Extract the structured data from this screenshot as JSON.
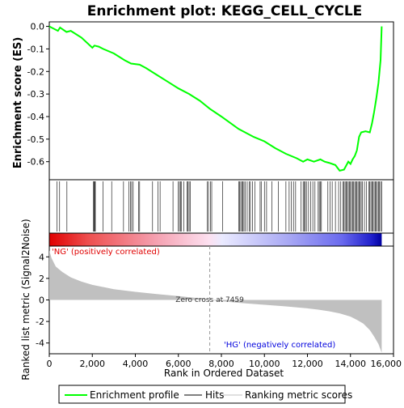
{
  "chart_data": {
    "type": "line",
    "title": "Enrichment plot: KEGG_CELL_CYCLE",
    "top_panel": {
      "ylabel": "Enrichment score (ES)",
      "ylim": [
        -0.68,
        0.02
      ],
      "yticks": [
        0.0,
        -0.1,
        -0.2,
        -0.3,
        -0.4,
        -0.5,
        -0.6
      ],
      "ytick_labels": [
        "0.0",
        "-0.1",
        "-0.2",
        "-0.3",
        "-0.4",
        "-0.5",
        "-0.6"
      ],
      "series": [
        {
          "name": "Enrichment profile",
          "color": "#00ff00",
          "x": [
            0,
            400,
            500,
            800,
            1000,
            1500,
            2000,
            2100,
            2300,
            2500,
            3000,
            3500,
            3800,
            4200,
            4500,
            5000,
            5500,
            6000,
            6500,
            7000,
            7459,
            8000,
            8800,
            9500,
            10000,
            10500,
            11000,
            11500,
            11800,
            12000,
            12300,
            12600,
            12800,
            13000,
            13300,
            13500,
            13700,
            13900,
            14000,
            14100,
            14200,
            14300,
            14400,
            14500,
            14700,
            14900,
            15000,
            15100,
            15200,
            15300,
            15400,
            15450
          ],
          "y": [
            0.0,
            -0.02,
            -0.005,
            -0.025,
            -0.02,
            -0.05,
            -0.095,
            -0.085,
            -0.09,
            -0.1,
            -0.12,
            -0.15,
            -0.165,
            -0.17,
            -0.185,
            -0.215,
            -0.245,
            -0.275,
            -0.3,
            -0.33,
            -0.365,
            -0.4,
            -0.455,
            -0.49,
            -0.51,
            -0.54,
            -0.565,
            -0.585,
            -0.6,
            -0.59,
            -0.6,
            -0.59,
            -0.6,
            -0.605,
            -0.615,
            -0.64,
            -0.635,
            -0.6,
            -0.61,
            -0.59,
            -0.575,
            -0.55,
            -0.49,
            -0.47,
            -0.465,
            -0.47,
            -0.43,
            -0.38,
            -0.32,
            -0.25,
            -0.15,
            0.0
          ]
        }
      ]
    },
    "hits": {
      "name": "Hits",
      "color": "#000000",
      "positions": [
        350,
        480,
        820,
        2050,
        2080,
        2110,
        2140,
        2500,
        2900,
        3450,
        3700,
        3780,
        3830,
        3900,
        4150,
        4200,
        4800,
        5050,
        5150,
        5750,
        6000,
        6050,
        6100,
        6150,
        6250,
        6400,
        6450,
        6500,
        6550,
        7350,
        7400,
        7500,
        7550,
        8050,
        8800,
        8850,
        8900,
        8950,
        9000,
        9050,
        9100,
        9200,
        9300,
        9350,
        9450,
        9550,
        9800,
        9850,
        10000,
        10100,
        10350,
        10650,
        11000,
        11150,
        11250,
        11350,
        11450,
        11700,
        11800,
        11850,
        11900,
        11950,
        12050,
        12150,
        12250,
        12350,
        12500,
        12550,
        12600,
        12650,
        12950,
        13050,
        13150,
        13300,
        13450,
        13550,
        13650,
        13700,
        13750,
        13800,
        13850,
        13900,
        13950,
        14000,
        14050,
        14100,
        14150,
        14200,
        14250,
        14300,
        14350,
        14400,
        14450,
        14500,
        14550,
        14650,
        14750,
        14850,
        14900,
        14950,
        15000,
        15050,
        15100,
        15150,
        15200,
        15250,
        15300,
        15350,
        15400,
        15450
      ]
    },
    "bottom_panel": {
      "ylabel": "Ranked list metric (Signal2Noise)",
      "xlabel": "Rank in Ordered Dataset",
      "ylim": [
        -5,
        5
      ],
      "yticks": [
        4,
        2,
        0,
        -2,
        -4
      ],
      "ytick_labels": [
        "4",
        "2",
        "0",
        "-2",
        "-4"
      ],
      "xlim": [
        0,
        16000
      ],
      "xticks": [
        0,
        2000,
        4000,
        6000,
        8000,
        10000,
        12000,
        14000,
        16000
      ],
      "xtick_labels": [
        "0",
        "2,000",
        "4,000",
        "6,000",
        "8,000",
        "10,000",
        "12,000",
        "14,000",
        "16,000"
      ],
      "series": [
        {
          "name": "Ranking metric scores",
          "color": "#c0c0c0",
          "x": [
            0,
            100,
            300,
            600,
            1000,
            1500,
            2000,
            3000,
            4000,
            5000,
            6000,
            7000,
            7459,
            8000,
            9000,
            10000,
            11000,
            12000,
            12500,
            13000,
            13500,
            14000,
            14300,
            14600,
            14900,
            15100,
            15300,
            15450
          ],
          "y": [
            4.6,
            3.9,
            3.1,
            2.6,
            2.1,
            1.7,
            1.4,
            1.0,
            0.75,
            0.55,
            0.35,
            0.15,
            0.0,
            -0.12,
            -0.3,
            -0.45,
            -0.6,
            -0.78,
            -0.9,
            -1.05,
            -1.25,
            -1.55,
            -1.85,
            -2.2,
            -2.8,
            -3.4,
            -4.1,
            -4.9
          ]
        }
      ],
      "annotations": {
        "positive": "'NG' (positively correlated)",
        "negative": "'HG' (negatively correlated)",
        "zero_cross": "Zero cross at 7459"
      },
      "zero_cross": 7459
    },
    "legend": {
      "placement": "bottom",
      "entries": [
        {
          "label": "Enrichment profile",
          "color": "#00ff00"
        },
        {
          "label": "Hits",
          "color": "#000000"
        },
        {
          "label": "Ranking metric scores",
          "color": "#c0c0c0"
        }
      ]
    },
    "grid": false
  }
}
